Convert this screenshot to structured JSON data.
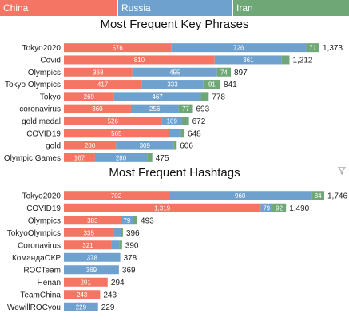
{
  "colors": {
    "China": "#F47564",
    "Russia": "#6FA1CF",
    "Iran": "#6FA876"
  },
  "legend": {
    "china": "China",
    "russia": "Russia",
    "iran": "Iran"
  },
  "filter_icon": "filter-icon",
  "chart_data": [
    {
      "type": "bar",
      "orientation": "horizontal",
      "stacked": true,
      "title": "Most Frequent Key Phrases",
      "categories": [
        "Tokyo2020",
        "Covid",
        "Olympics",
        "Tokyo Olympics",
        "Tokyo",
        "coronavirus",
        "gold medal",
        "COVID19",
        "gold",
        "Olympic Games"
      ],
      "series": [
        {
          "name": "China",
          "values": [
            576,
            810,
            368,
            417,
            269,
            360,
            526,
            565,
            280,
            167
          ]
        },
        {
          "name": "Russia",
          "values": [
            726,
            361,
            455,
            333,
            467,
            256,
            109,
            64,
            309,
            280
          ]
        },
        {
          "name": "Iran",
          "values": [
            71,
            41,
            74,
            91,
            42,
            77,
            37,
            19,
            17,
            28
          ]
        }
      ],
      "totals": [
        1373,
        1212,
        897,
        841,
        778,
        693,
        672,
        648,
        606,
        475
      ],
      "total_labels": [
        "1,373",
        "1,212",
        "897",
        "841",
        "778",
        "693",
        "672",
        "648",
        "606",
        "475"
      ],
      "segment_labels": [
        [
          "576",
          "726",
          "71"
        ],
        [
          "810",
          "361",
          ""
        ],
        [
          "368",
          "455",
          "74"
        ],
        [
          "417",
          "333",
          "91"
        ],
        [
          "269",
          "467",
          ""
        ],
        [
          "360",
          "256",
          "77"
        ],
        [
          "526",
          "109",
          ""
        ],
        [
          "565",
          "",
          ""
        ],
        [
          "280",
          "309",
          ""
        ],
        [
          "167",
          "280",
          ""
        ]
      ],
      "xlim": [
        0,
        1373
      ]
    },
    {
      "type": "bar",
      "orientation": "horizontal",
      "stacked": true,
      "title": "Most Frequent Hashtags",
      "categories": [
        "Tokyo2020",
        "COVID19",
        "Olympics",
        "TokyoOlympics",
        "Coronavirus",
        "КомандаОКР",
        "ROCTeam",
        "Henan",
        "TeamChina",
        "WewillROCyou"
      ],
      "series": [
        {
          "name": "China",
          "values": [
            702,
            1319,
            383,
            335,
            321,
            0,
            0,
            291,
            243,
            0
          ]
        },
        {
          "name": "Russia",
          "values": [
            960,
            79,
            79,
            48,
            52,
            378,
            369,
            3,
            0,
            229
          ]
        },
        {
          "name": "Iran",
          "values": [
            84,
            92,
            31,
            13,
            17,
            0,
            0,
            0,
            0,
            0
          ]
        }
      ],
      "totals": [
        1746,
        1490,
        493,
        396,
        390,
        378,
        369,
        294,
        243,
        229
      ],
      "total_labels": [
        "1,746",
        "1,490",
        "493",
        "396",
        "390",
        "378",
        "369",
        "294",
        "243",
        "229"
      ],
      "segment_labels": [
        [
          "702",
          "960",
          "84"
        ],
        [
          "1,319",
          "79",
          "92"
        ],
        [
          "383",
          "79",
          ""
        ],
        [
          "335",
          "",
          ""
        ],
        [
          "321",
          "",
          ""
        ],
        [
          "",
          "378",
          ""
        ],
        [
          "",
          "369",
          ""
        ],
        [
          "291",
          "",
          ""
        ],
        [
          "243",
          "",
          ""
        ],
        [
          "",
          "229",
          ""
        ]
      ],
      "xlim": [
        0,
        1746
      ]
    }
  ]
}
